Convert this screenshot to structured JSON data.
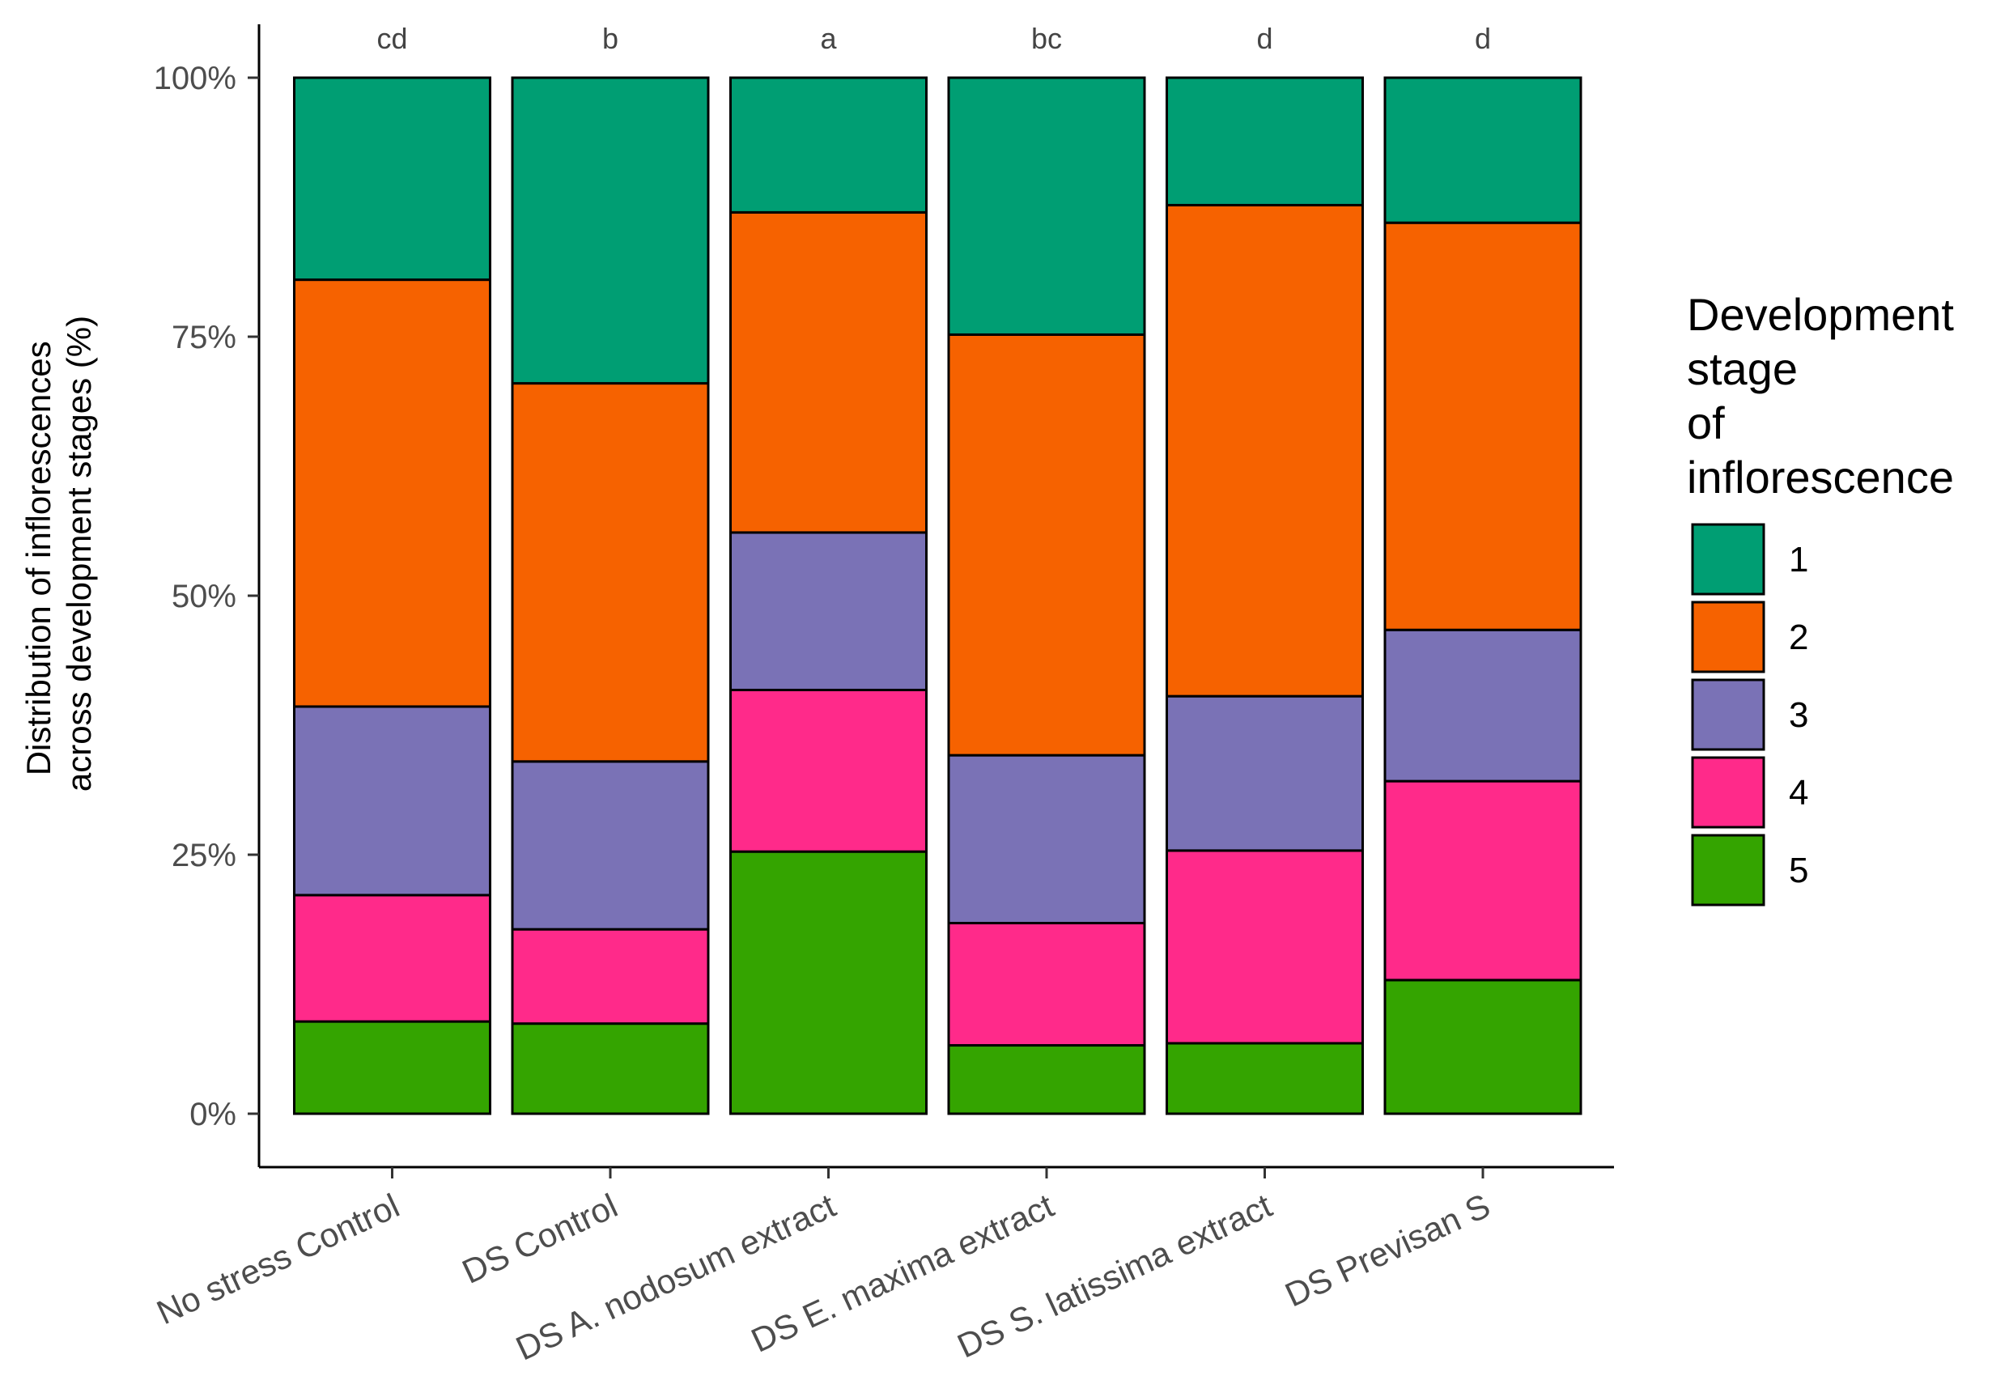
{
  "chart_data": {
    "type": "bar",
    "stacked": true,
    "percent": true,
    "categories": [
      "No stress Control",
      "DS Control",
      "DS A. nodosum extract",
      "DS E. maxima extract",
      "DS S. latissima extract",
      "DS Previsan S"
    ],
    "significance_letters": [
      "cd",
      "b",
      "a",
      "bc",
      "d",
      "d"
    ],
    "ylabel_line1": "Distribution of inflorescences",
    "ylabel_line2": "across development stages (%)",
    "xlabel": "",
    "ylim": [
      0,
      100
    ],
    "yticks": [
      0,
      25,
      50,
      75,
      100
    ],
    "ytick_labels": [
      "0%",
      "25%",
      "50%",
      "75%",
      "100%"
    ],
    "grid": false,
    "legend": {
      "position": "right",
      "title_lines": [
        "Development",
        "stage",
        "of",
        "inflorescence"
      ]
    },
    "series": [
      {
        "name": "1",
        "color": "#009E73",
        "values": [
          19.5,
          29.5,
          13.0,
          24.8,
          12.3,
          14.0
        ]
      },
      {
        "name": "2",
        "color": "#F66200",
        "values": [
          41.2,
          36.5,
          30.9,
          40.6,
          47.4,
          39.3
        ]
      },
      {
        "name": "3",
        "color": "#7A72B6",
        "values": [
          18.2,
          16.2,
          15.2,
          16.2,
          14.9,
          14.6
        ]
      },
      {
        "name": "4",
        "color": "#FF2A8A",
        "values": [
          12.2,
          9.1,
          15.6,
          11.8,
          18.6,
          19.2
        ]
      },
      {
        "name": "5",
        "color": "#34A400",
        "values": [
          8.9,
          8.7,
          25.3,
          6.6,
          6.8,
          12.9
        ]
      }
    ]
  }
}
